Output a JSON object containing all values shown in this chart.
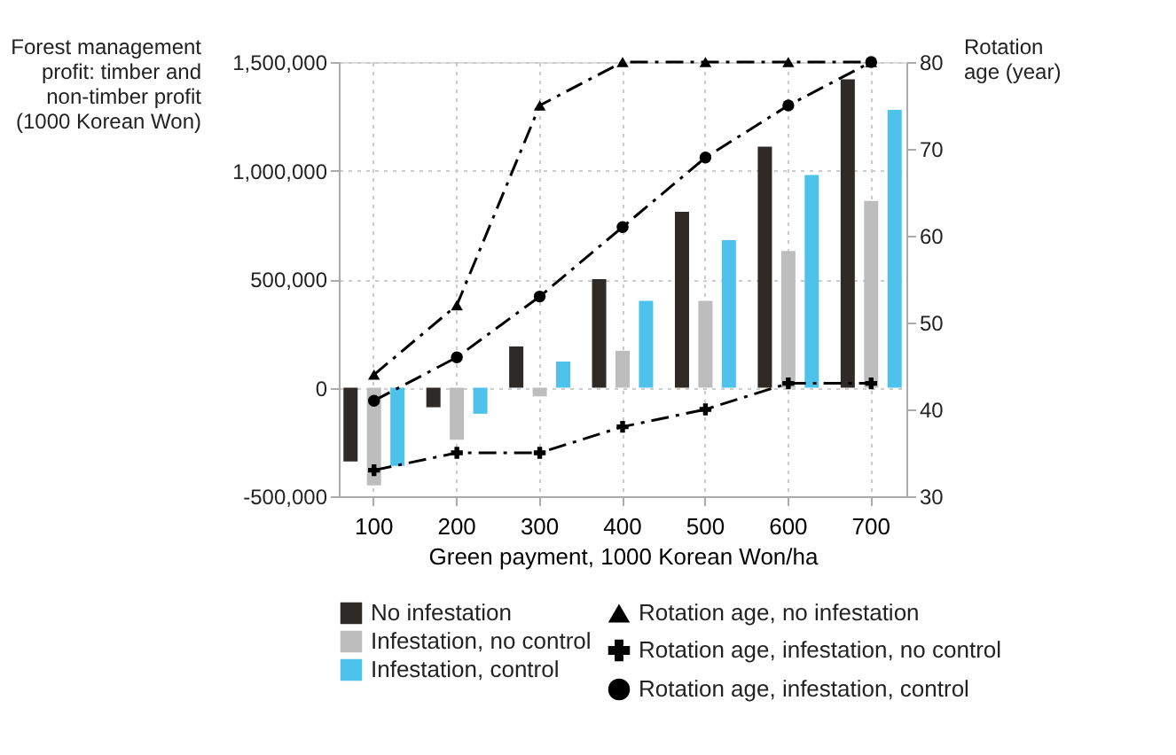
{
  "chart_data": {
    "type": "bar",
    "xlabel": "Green payment, 1000 Korean Won/ha",
    "ylabel": "Forest management profit: timber and non-timber profit (1000 Korean Won)",
    "y2label": "Rotation age (year)",
    "categories": [
      "100",
      "200",
      "300",
      "400",
      "500",
      "600",
      "700"
    ],
    "series": [
      {
        "name": "No infestation",
        "color": "#2d2a28",
        "values": [
          -340000,
          -90000,
          190000,
          500000,
          810000,
          1110000,
          1420000
        ]
      },
      {
        "name": "Infestation, no control",
        "color": "#bdbdbd",
        "values": [
          -450000,
          -240000,
          -40000,
          170000,
          400000,
          630000,
          860000
        ]
      },
      {
        "name": "Infestation, control",
        "color": "#4dc3ec",
        "values": [
          -360000,
          -120000,
          120000,
          400000,
          680000,
          980000,
          1280000
        ]
      },
      {
        "name": "Rotation age, no infestation",
        "type": "line",
        "axis": "y2",
        "color": "#000000",
        "marker": "triangle",
        "line_style": "dashed",
        "values": [
          44,
          52,
          75,
          80,
          80,
          80,
          80
        ]
      },
      {
        "name": "Rotation age, infestation, no control",
        "type": "line",
        "axis": "y2",
        "color": "#000000",
        "marker": "cross",
        "line_style": "dashed",
        "values": [
          33,
          35,
          35,
          38,
          40,
          43,
          43
        ]
      },
      {
        "name": "Rotation age, infestation, control",
        "type": "line",
        "axis": "y2",
        "color": "#000000",
        "marker": "circle",
        "line_style": "dashed",
        "values": [
          41,
          46,
          53,
          61,
          69,
          75,
          80
        ]
      }
    ],
    "ylim": [
      -500000,
      1500000
    ],
    "yticks": [
      {
        "value": -500000,
        "label": "-500,000"
      },
      0,
      {
        "value": 500000,
        "label": "500,000"
      },
      {
        "value": 1000000,
        "label": "1,000,000"
      },
      {
        "value": 1500000,
        "label": "1,500,000"
      }
    ],
    "y2lim": [
      30,
      80
    ],
    "y2ticks": [
      30,
      40,
      50,
      60,
      70,
      80
    ],
    "grid": true,
    "legend": "bottom"
  }
}
